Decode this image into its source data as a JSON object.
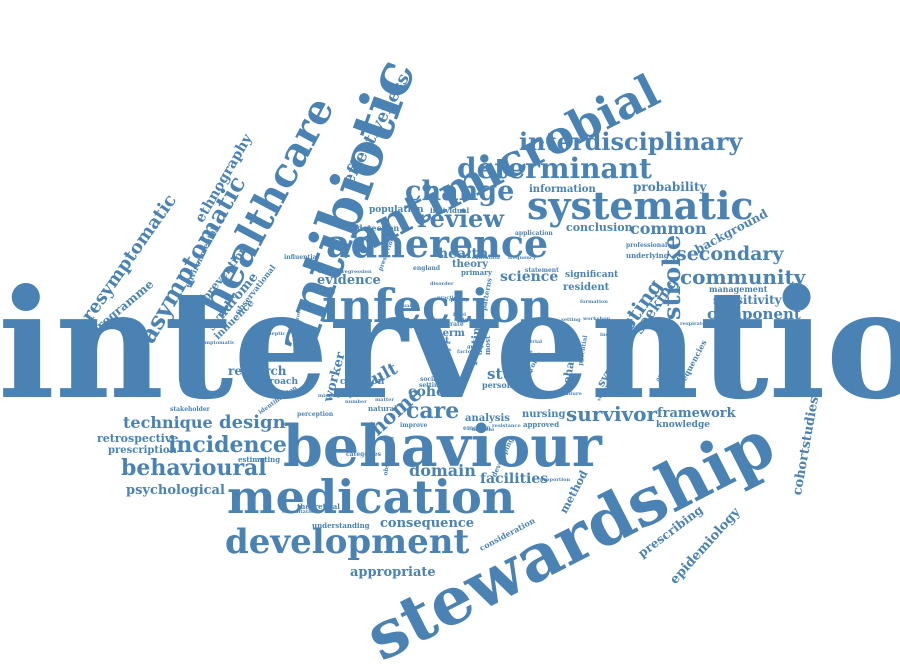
{
  "color": "#4a82b4",
  "words": [
    {
      "id": "intervention",
      "text": "intervention"
    },
    {
      "id": "stewardship",
      "text": "stewardship"
    },
    {
      "id": "behaviour",
      "text": "behaviour"
    },
    {
      "id": "medication",
      "text": "medication"
    },
    {
      "id": "infection",
      "text": "infection"
    },
    {
      "id": "antibiotic",
      "text": "antibiotic"
    },
    {
      "id": "antimicrobial",
      "text": "antimicrobial"
    },
    {
      "id": "adherence",
      "text": "adherence"
    },
    {
      "id": "systematic",
      "text": "systematic"
    },
    {
      "id": "healthcare",
      "text": "healthcare"
    },
    {
      "id": "development",
      "text": "development"
    },
    {
      "id": "determinant",
      "text": "determinant"
    },
    {
      "id": "interdisciplinary",
      "text": "interdisciplinary"
    },
    {
      "id": "change",
      "text": "change"
    },
    {
      "id": "review",
      "text": "review"
    },
    {
      "id": "community",
      "text": "community"
    },
    {
      "id": "secondary",
      "text": "secondary"
    },
    {
      "id": "asymptomatic",
      "text": "asymptomatic"
    },
    {
      "id": "presymptomatic",
      "text": "presymptomatic"
    },
    {
      "id": "ethnography",
      "text": "ethnography"
    },
    {
      "id": "effectiveness",
      "text": "effectiveness"
    },
    {
      "id": "behavioural",
      "text": "behavioural"
    },
    {
      "id": "incidence",
      "text": "incidence"
    },
    {
      "id": "technique",
      "text": "technique"
    },
    {
      "id": "design",
      "text": "design"
    },
    {
      "id": "psychological",
      "text": "psychological"
    },
    {
      "id": "retrospective",
      "text": "retrospective"
    },
    {
      "id": "prescription",
      "text": "prescription"
    },
    {
      "id": "appropriate",
      "text": "appropriate"
    },
    {
      "id": "consequence",
      "text": "consequence"
    },
    {
      "id": "domain",
      "text": "domain"
    },
    {
      "id": "facilities",
      "text": "facilities"
    },
    {
      "id": "survivor",
      "text": "survivor"
    },
    {
      "id": "framework",
      "text": "framework"
    },
    {
      "id": "knowledge",
      "text": "knowledge"
    },
    {
      "id": "care",
      "text": "care"
    },
    {
      "id": "home",
      "text": "home"
    },
    {
      "id": "research",
      "text": "research"
    },
    {
      "id": "approach",
      "text": "approach"
    },
    {
      "id": "worker",
      "text": "worker"
    },
    {
      "id": "result",
      "text": "result"
    },
    {
      "id": "cohort",
      "text": "cohort"
    },
    {
      "id": "study",
      "text": "study"
    },
    {
      "id": "testing",
      "text": "testing"
    },
    {
      "id": "stroke",
      "text": "stroke"
    },
    {
      "id": "seeking",
      "text": "seeking"
    },
    {
      "id": "symptom",
      "text": "symptom"
    },
    {
      "id": "behavior",
      "text": "behavior"
    },
    {
      "id": "cohortstudies",
      "text": "cohortstudies"
    },
    {
      "id": "epidemiology",
      "text": "epidemiology"
    },
    {
      "id": "prescribing",
      "text": "prescribing"
    },
    {
      "id": "method",
      "text": "method"
    },
    {
      "id": "evidence",
      "text": "evidence"
    },
    {
      "id": "health",
      "text": "health"
    },
    {
      "id": "science",
      "text": "science"
    },
    {
      "id": "theory",
      "text": "theory"
    },
    {
      "id": "routine",
      "text": "routine"
    },
    {
      "id": "component",
      "text": "component"
    },
    {
      "id": "sensitivity",
      "text": "sensitivity"
    },
    {
      "id": "management",
      "text": "management"
    },
    {
      "id": "background",
      "text": "background"
    },
    {
      "id": "common",
      "text": "common"
    },
    {
      "id": "probability",
      "text": "probability"
    },
    {
      "id": "conclusion",
      "text": "conclusion"
    },
    {
      "id": "information",
      "text": "information"
    },
    {
      "id": "population",
      "text": "population"
    },
    {
      "id": "detection",
      "text": "detection"
    },
    {
      "id": "programme",
      "text": "programme"
    },
    {
      "id": "prevention",
      "text": "prevention"
    },
    {
      "id": "syndrome",
      "text": "syndrome"
    },
    {
      "id": "influence",
      "text": "influence"
    },
    {
      "id": "environmental",
      "text": "environmental"
    },
    {
      "id": "observational",
      "text": "observational"
    },
    {
      "id": "frequencies",
      "text": "frequencies"
    },
    {
      "id": "resident",
      "text": "resident"
    },
    {
      "id": "significant",
      "text": "significant"
    },
    {
      "id": "nursing",
      "text": "nursing"
    },
    {
      "id": "analysis",
      "text": "analysis"
    },
    {
      "id": "criterion",
      "text": "criterion"
    },
    {
      "id": "estimating",
      "text": "estimating"
    },
    {
      "id": "categories",
      "text": "categories"
    },
    {
      "id": "theoretical",
      "text": "theoretical"
    },
    {
      "id": "understanding",
      "text": "understanding"
    },
    {
      "id": "consideration",
      "text": "consideration"
    },
    {
      "id": "stakeholder",
      "text": "stakeholder"
    },
    {
      "id": "identification",
      "text": "identification"
    },
    {
      "id": "perception",
      "text": "perception"
    },
    {
      "id": "individual",
      "text": "individual"
    },
    {
      "id": "application",
      "text": "application"
    },
    {
      "id": "professional",
      "text": "professional"
    },
    {
      "id": "underlying",
      "text": "underlying"
    },
    {
      "id": "test",
      "text": "test"
    },
    {
      "id": "person",
      "text": "person"
    },
    {
      "id": "primary",
      "text": "primary"
    },
    {
      "id": "england",
      "text": "england"
    },
    {
      "id": "improve",
      "text": "improve"
    },
    {
      "id": "emotion",
      "text": "emotion"
    },
    {
      "id": "resistance",
      "text": "resistance"
    },
    {
      "id": "approved",
      "text": "approved"
    },
    {
      "id": "social",
      "text": "social"
    },
    {
      "id": "setting",
      "text": "setting"
    },
    {
      "id": "natural",
      "text": "natural"
    },
    {
      "id": "medical",
      "text": "medical"
    },
    {
      "id": "rate",
      "text": "rate"
    },
    {
      "id": "term",
      "text": "term"
    },
    {
      "id": "data",
      "text": "data"
    },
    {
      "id": "most",
      "text": "most"
    },
    {
      "id": "proportion",
      "text": "proportion"
    },
    {
      "id": "respiratory",
      "text": "respiratory"
    },
    {
      "id": "acceptability",
      "text": "acceptability"
    },
    {
      "id": "developing",
      "text": "developing"
    },
    {
      "id": "observation",
      "text": "observation"
    },
    {
      "id": "preserving",
      "text": "preserving"
    },
    {
      "id": "influential",
      "text": "influential"
    },
    {
      "id": "regression",
      "text": "regression"
    },
    {
      "id": "database",
      "text": "database"
    },
    {
      "id": "frequency",
      "text": "frequency"
    },
    {
      "id": "education",
      "text": "education"
    },
    {
      "id": "electronic",
      "text": "electronic"
    },
    {
      "id": "patterns",
      "text": "patterns"
    },
    {
      "id": "type",
      "text": "type"
    },
    {
      "id": "level",
      "text": "level"
    },
    {
      "id": "quality",
      "text": "quality"
    },
    {
      "id": "factor",
      "text": "factor"
    },
    {
      "id": "belief",
      "text": "belief"
    },
    {
      "id": "hcw",
      "text": "hcw"
    },
    {
      "id": "antiepileptic",
      "text": "antiepileptic"
    },
    {
      "id": "symptomatic",
      "text": "symptomatic"
    },
    {
      "id": "improving",
      "text": "improving"
    },
    {
      "id": "potential",
      "text": "potential"
    },
    {
      "id": "vulnerable",
      "text": "vulnerable"
    },
    {
      "id": "statement",
      "text": "statement"
    },
    {
      "id": "number",
      "text": "number"
    },
    {
      "id": "consultation",
      "text": "consultation"
    },
    {
      "id": "practice",
      "text": "practice"
    },
    {
      "id": "workshop",
      "text": "workshop"
    },
    {
      "id": "disorder",
      "text": "disorder"
    },
    {
      "id": "formation",
      "text": "formation"
    },
    {
      "id": "anxiety",
      "text": "anxiety"
    },
    {
      "id": "matter",
      "text": "matter"
    },
    {
      "id": "inequality",
      "text": "inequality"
    },
    {
      "id": "trial",
      "text": "trial"
    },
    {
      "id": "bias",
      "text": "bias"
    },
    {
      "id": "group",
      "text": "group"
    },
    {
      "id": "enable",
      "text": "enable"
    },
    {
      "id": "failure",
      "text": "failure"
    },
    {
      "id": "review2",
      "text": "review"
    },
    {
      "id": "quality2",
      "text": "quality"
    },
    {
      "id": "missing",
      "text": "missing"
    },
    {
      "id": "setting2",
      "text": "setting"
    }
  ]
}
